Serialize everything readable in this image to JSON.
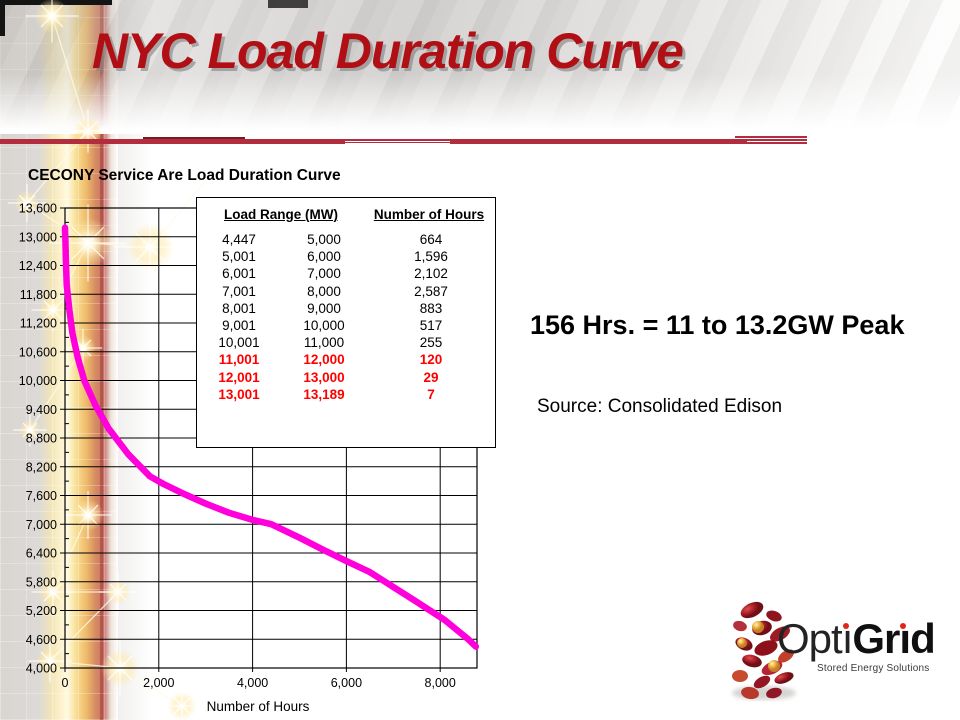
{
  "slide": {
    "title": "NYC Load Duration Curve"
  },
  "chart": {
    "title": "CECONY Service Are Load Duration Curve",
    "xlabel": "Number of Hours"
  },
  "chart_data": {
    "type": "line",
    "title": "CECONY Service Are Load Duration Curve",
    "xlabel": "Number of Hours",
    "ylabel": "",
    "xlim": [
      0,
      8785
    ],
    "ylim": [
      4000,
      13600
    ],
    "x_tick_step": 2000,
    "x_tick_max": 8000,
    "x_tick_labels": [
      "0",
      "2,000",
      "4,000",
      "6,000",
      "8,000"
    ],
    "y_tick_step": 600,
    "y_minor_tick_step": 300,
    "y_tick_labels": [
      "4,000",
      "4,600",
      "5,200",
      "5,800",
      "6,400",
      "7,000",
      "7,600",
      "8,200",
      "8,800",
      "9,400",
      "10,000",
      "10,600",
      "11,200",
      "11,800",
      "12,400",
      "13,000",
      "13,600"
    ],
    "grid": true,
    "legend": false,
    "line_color": "#FF00DC",
    "series": [
      {
        "name": "CECONY service area load duration",
        "points": [
          [
            0,
            13189
          ],
          [
            3,
            13100
          ],
          [
            7,
            13001
          ],
          [
            20,
            12500
          ],
          [
            36,
            12001
          ],
          [
            90,
            11500
          ],
          [
            156,
            11001
          ],
          [
            270,
            10480
          ],
          [
            411,
            10001
          ],
          [
            650,
            9480
          ],
          [
            928,
            9001
          ],
          [
            1350,
            8460
          ],
          [
            1811,
            8001
          ],
          [
            2100,
            7840
          ],
          [
            2500,
            7650
          ],
          [
            3000,
            7430
          ],
          [
            3500,
            7240
          ],
          [
            4000,
            7090
          ],
          [
            4398,
            7001
          ],
          [
            5000,
            6720
          ],
          [
            5500,
            6470
          ],
          [
            6000,
            6230
          ],
          [
            6500,
            6001
          ],
          [
            7000,
            5690
          ],
          [
            7500,
            5380
          ],
          [
            8096,
            5001
          ],
          [
            8400,
            4760
          ],
          [
            8600,
            4600
          ],
          [
            8760,
            4447
          ]
        ]
      }
    ]
  },
  "table": {
    "headers": {
      "load_range": "Load Range (MW)",
      "hours": "Number of Hours"
    },
    "rows": [
      {
        "low": "4,447",
        "high": "5,000",
        "hours": "664",
        "highlight": false
      },
      {
        "low": "5,001",
        "high": "6,000",
        "hours": "1,596",
        "highlight": false
      },
      {
        "low": "6,001",
        "high": "7,000",
        "hours": "2,102",
        "highlight": false
      },
      {
        "low": "7,001",
        "high": "8,000",
        "hours": "2,587",
        "highlight": false
      },
      {
        "low": "8,001",
        "high": "9,000",
        "hours": "883",
        "highlight": false
      },
      {
        "low": "9,001",
        "high": "10,000",
        "hours": "517",
        "highlight": false
      },
      {
        "low": "10,001",
        "high": "11,000",
        "hours": "255",
        "highlight": false
      },
      {
        "low": "11,001",
        "high": "12,000",
        "hours": "120",
        "highlight": true
      },
      {
        "low": "12,001",
        "high": "13,000",
        "hours": "29",
        "highlight": true
      },
      {
        "low": "13,001",
        "high": "13,189",
        "hours": "7",
        "highlight": true
      }
    ],
    "highlight_color": "#FF0000"
  },
  "annotations": {
    "peak_note": "156 Hrs. = 11 to 13.2GW Peak",
    "source": "Source: Consolidated Edison"
  },
  "logo": {
    "name_part1": "Opti",
    "name_part2": "Grid",
    "tagline": "Stored Energy Solutions"
  },
  "colors": {
    "title_red": "#b01015",
    "divider_red": "#b22e3e",
    "curve_magenta": "#FF00DC",
    "table_highlight_red": "#FF0000"
  }
}
